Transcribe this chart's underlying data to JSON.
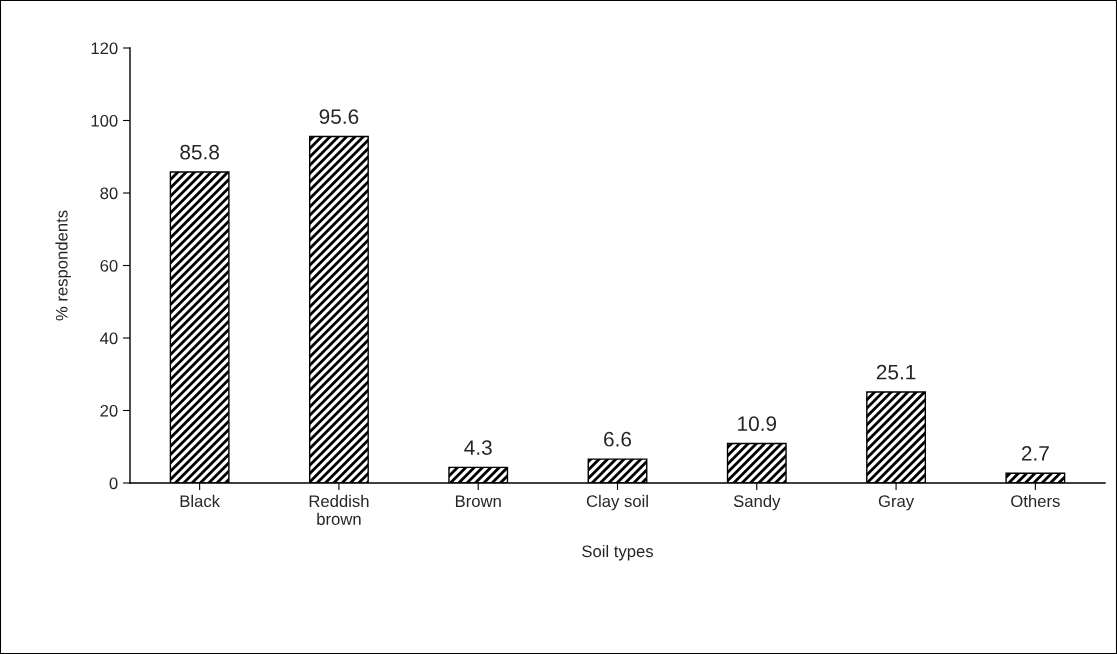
{
  "chart_data": {
    "type": "bar",
    "xlabel": "Soil types",
    "ylabel": "% respondents",
    "categories": [
      "Black",
      "Reddish\nbrown",
      "Brown",
      "Clay soil",
      "Sandy",
      "Gray",
      "Others"
    ],
    "values": [
      85.8,
      95.6,
      4.3,
      6.6,
      10.9,
      25.1,
      2.7
    ],
    "color": "#000000",
    "ylim": [
      0,
      120
    ],
    "yticks": [
      0,
      20,
      40,
      60,
      80,
      100,
      120
    ],
    "grid": false,
    "data_labels": true
  }
}
